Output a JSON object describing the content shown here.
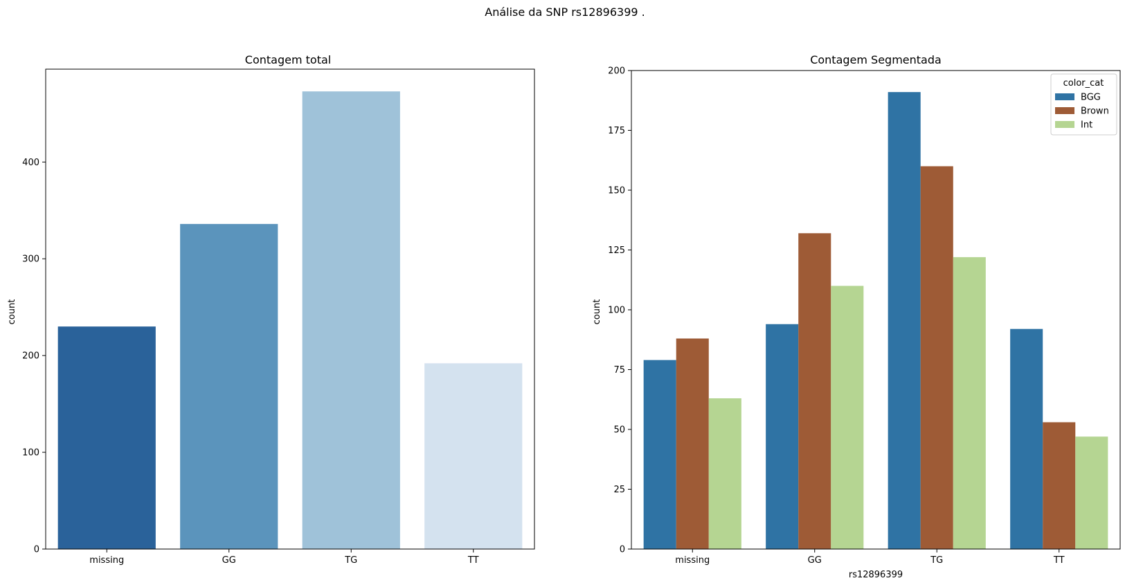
{
  "figure": {
    "suptitle": "Análise da SNP rs12896399 ."
  },
  "chart_data": [
    {
      "type": "bar",
      "title": "Contagem total",
      "xlabel": "",
      "ylabel": "count",
      "categories": [
        "missing",
        "GG",
        "TG",
        "TT"
      ],
      "values": [
        230,
        336,
        473,
        192
      ],
      "bar_colors": [
        "#2a629a",
        "#5b94bc",
        "#9fc2d9",
        "#d4e2ef"
      ],
      "ylim": [
        0,
        496
      ],
      "yticks": [
        0,
        100,
        200,
        300,
        400
      ],
      "grid": false,
      "legend": null
    },
    {
      "type": "bar",
      "title": "Contagem Segmentada",
      "xlabel": "rs12896399",
      "ylabel": "count",
      "categories": [
        "missing",
        "GG",
        "TG",
        "TT"
      ],
      "series": [
        {
          "name": "BGG",
          "color": "#2f73a4",
          "values": [
            79,
            94,
            191,
            92
          ]
        },
        {
          "name": "Brown",
          "color": "#9e5b36",
          "values": [
            88,
            132,
            160,
            53
          ]
        },
        {
          "name": "Int",
          "color": "#b5d592",
          "values": [
            63,
            110,
            122,
            47
          ]
        }
      ],
      "ylim": [
        0,
        200
      ],
      "yticks": [
        0,
        25,
        50,
        75,
        100,
        125,
        150,
        175,
        200
      ],
      "grid": false,
      "legend": {
        "title": "color_cat",
        "placement": "top-right"
      }
    }
  ]
}
